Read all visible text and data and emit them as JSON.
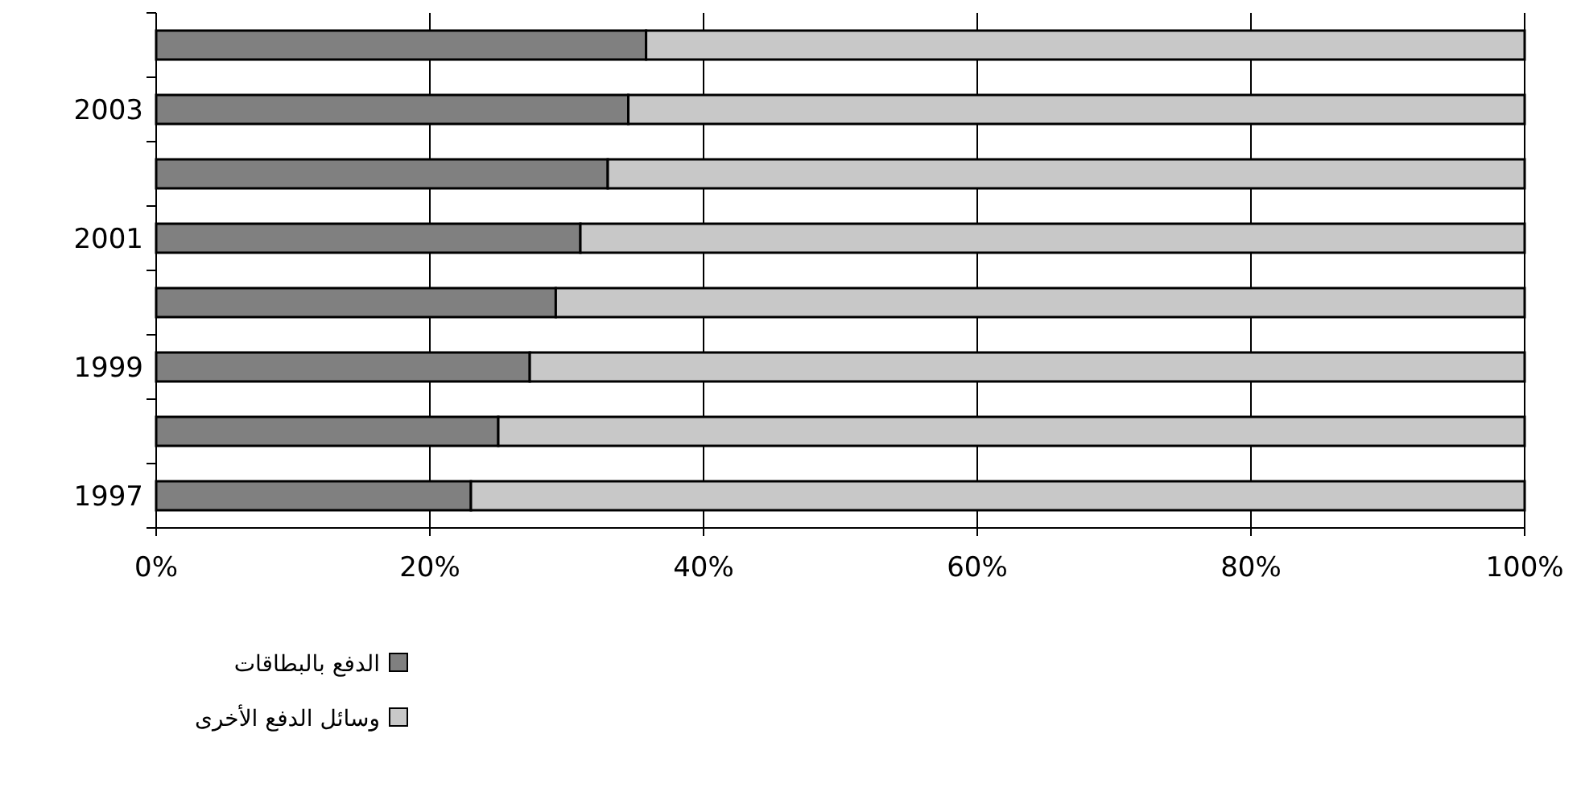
{
  "chart_data": {
    "type": "bar",
    "orientation": "horizontal",
    "stacked": true,
    "categories": [
      null,
      "2003",
      null,
      "2001",
      null,
      "1999",
      null,
      "1997"
    ],
    "series": [
      {
        "name": "الدفع بالبطاقات",
        "color": "#808080",
        "values": [
          35.8,
          34.5,
          33,
          31,
          29.2,
          27.3,
          25,
          23
        ]
      },
      {
        "name": "وسائل الدفع الأخرى",
        "color": "#c8c8c8",
        "values": [
          64.2,
          65.5,
          67,
          69,
          70.8,
          72.7,
          75,
          77
        ]
      }
    ],
    "xlim": [
      0,
      100
    ],
    "xticks": [
      {
        "value": 0,
        "label": "0%"
      },
      {
        "value": 20,
        "label": "20%"
      },
      {
        "value": 40,
        "label": "40%"
      },
      {
        "value": 60,
        "label": "60%"
      },
      {
        "value": 80,
        "label": "80%"
      },
      {
        "value": 100,
        "label": "100%"
      }
    ],
    "grid": "x",
    "legend": "bottom left"
  }
}
